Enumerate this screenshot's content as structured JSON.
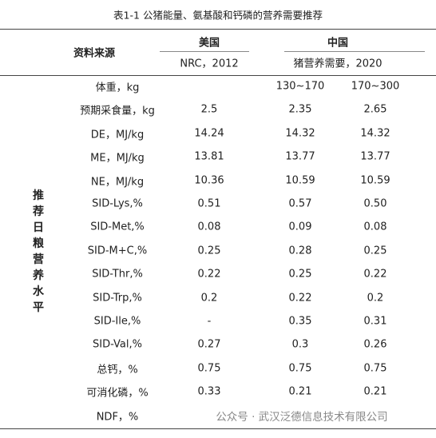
{
  "header": {
    "title": "表1-1  公猪能量、氨基酸和钙磷的营养需要推荐"
  },
  "table": {
    "source_label": "资料来源",
    "groups": [
      {
        "name": "美国",
        "sub": "NRC，2012"
      },
      {
        "name": "中国",
        "sub": "猪营养需要，2020"
      }
    ],
    "side_label": "推荐日粮营养水平",
    "rows": [
      {
        "label": "体重，kg",
        "values": [
          null,
          "130~170",
          "170~300"
        ]
      },
      {
        "label": "预期采食量，kg",
        "values": [
          "2.5",
          "2.35",
          "2.65"
        ]
      },
      {
        "label": "DE，MJ/kg",
        "values": [
          "14.24",
          "14.32",
          "14.32"
        ]
      },
      {
        "label": "ME，MJ/kg",
        "values": [
          "13.81",
          "13.77",
          "13.77"
        ]
      },
      {
        "label": "NE，MJ/kg",
        "values": [
          "10.36",
          "10.59",
          "10.59"
        ]
      },
      {
        "label": "SID-Lys,%",
        "values": [
          "0.51",
          "0.57",
          "0.50"
        ]
      },
      {
        "label": "SID-Met,%",
        "values": [
          "0.08",
          "0.09",
          "0.08"
        ]
      },
      {
        "label": "SID-M+C,%",
        "values": [
          "0.25",
          "0.28",
          "0.25"
        ]
      },
      {
        "label": "SID-Thr,%",
        "values": [
          "0.22",
          "0.25",
          "0.22"
        ]
      },
      {
        "label": "SID-Trp,%",
        "values": [
          "0.2",
          "0.22",
          "0.2"
        ]
      },
      {
        "label": "SID-Ile,%",
        "values": [
          "-",
          "0.35",
          "0.31"
        ]
      },
      {
        "label": "SID-Val,%",
        "values": [
          "0.27",
          "0.3",
          "0.26"
        ]
      },
      {
        "label": "总钙，%",
        "values": [
          "0.75",
          "0.75",
          "0.75"
        ]
      },
      {
        "label": "可消化磷，%",
        "values": [
          "0.33",
          "0.21",
          "0.21"
        ]
      },
      {
        "label": "NDF，%",
        "values": [
          null,
          null,
          null
        ]
      }
    ]
  },
  "watermark": {
    "text": "公众号 · 武汉泛德信息技术有限公司"
  }
}
